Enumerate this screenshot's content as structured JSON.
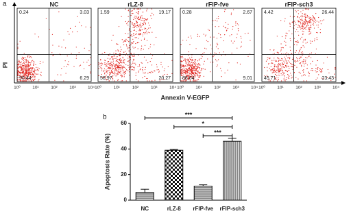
{
  "figure_a": {
    "label": "a",
    "y_label": "PI",
    "x_label": "Annexin V-EGFP",
    "x_tick_labels": [
      "10⁰",
      "10¹",
      "10²",
      "10³",
      "10⁴"
    ],
    "panels": [
      {
        "title": "NC",
        "quadrants": [
          "0.24",
          "3.03",
          "90.44",
          "6.29"
        ]
      },
      {
        "title": "rLZ-8",
        "quadrants": [
          "1.59",
          "19.17",
          "58.97",
          "20.27"
        ]
      },
      {
        "title": "rFIP-fve",
        "quadrants": [
          "0.28",
          "2.67",
          "88.04",
          "9.01"
        ]
      },
      {
        "title": "rFIP-sch3",
        "quadrants": [
          "4.42",
          "26.44",
          "45.71",
          "23.43"
        ]
      }
    ]
  },
  "chart_data": {
    "type": "bar",
    "label": "b",
    "y_label": "Apoptosis Rate (%)",
    "categories": [
      "NC",
      "rLZ-8",
      "rFIP-fve",
      "rFIP-sch3"
    ],
    "values": [
      6,
      39,
      11,
      46
    ],
    "errors": [
      2.5,
      0.7,
      1,
      2.5
    ],
    "patterns": [
      "hlines",
      "checker",
      "hlines",
      "vlines"
    ],
    "ylim": [
      0,
      60
    ],
    "yticks": [
      0,
      20,
      40,
      60
    ],
    "significance": [
      {
        "from": 0,
        "to": 3,
        "label": "***"
      },
      {
        "from": 1,
        "to": 3,
        "label": "*"
      },
      {
        "from": 2,
        "to": 3,
        "label": "***"
      }
    ]
  }
}
